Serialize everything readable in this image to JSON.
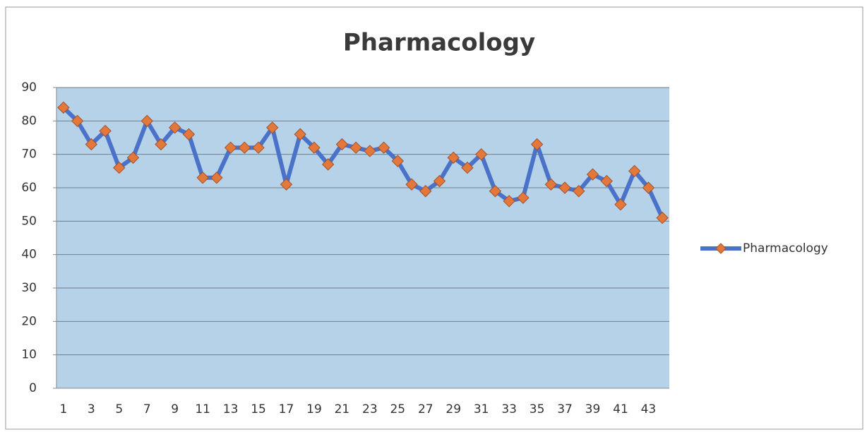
{
  "chart_data": {
    "type": "line",
    "title": "Pharmacology",
    "categories": [
      1,
      null,
      3,
      null,
      5,
      null,
      7,
      null,
      9,
      null,
      11,
      null,
      13,
      null,
      15,
      null,
      17,
      null,
      19,
      null,
      21,
      null,
      23,
      null,
      25,
      null,
      27,
      null,
      29,
      null,
      31,
      null,
      33,
      null,
      35,
      null,
      37,
      null,
      39,
      null,
      41,
      null,
      43,
      null
    ],
    "series": [
      {
        "name": "Pharmacology",
        "color": "#4a72c8",
        "marker_color": "#e4783a",
        "values": [
          84,
          80,
          73,
          77,
          66,
          69,
          80,
          73,
          78,
          76,
          63,
          63,
          72,
          72,
          72,
          78,
          61,
          76,
          72,
          67,
          73,
          72,
          71,
          72,
          68,
          61,
          59,
          62,
          69,
          66,
          70,
          59,
          56,
          57,
          73,
          61,
          60,
          59,
          64,
          62,
          55,
          65,
          60,
          51
        ]
      }
    ],
    "ylim": [
      0,
      90
    ],
    "yticks": [
      0,
      10,
      20,
      30,
      40,
      50,
      60,
      70,
      80,
      90
    ],
    "grid": true,
    "legend": "right"
  }
}
